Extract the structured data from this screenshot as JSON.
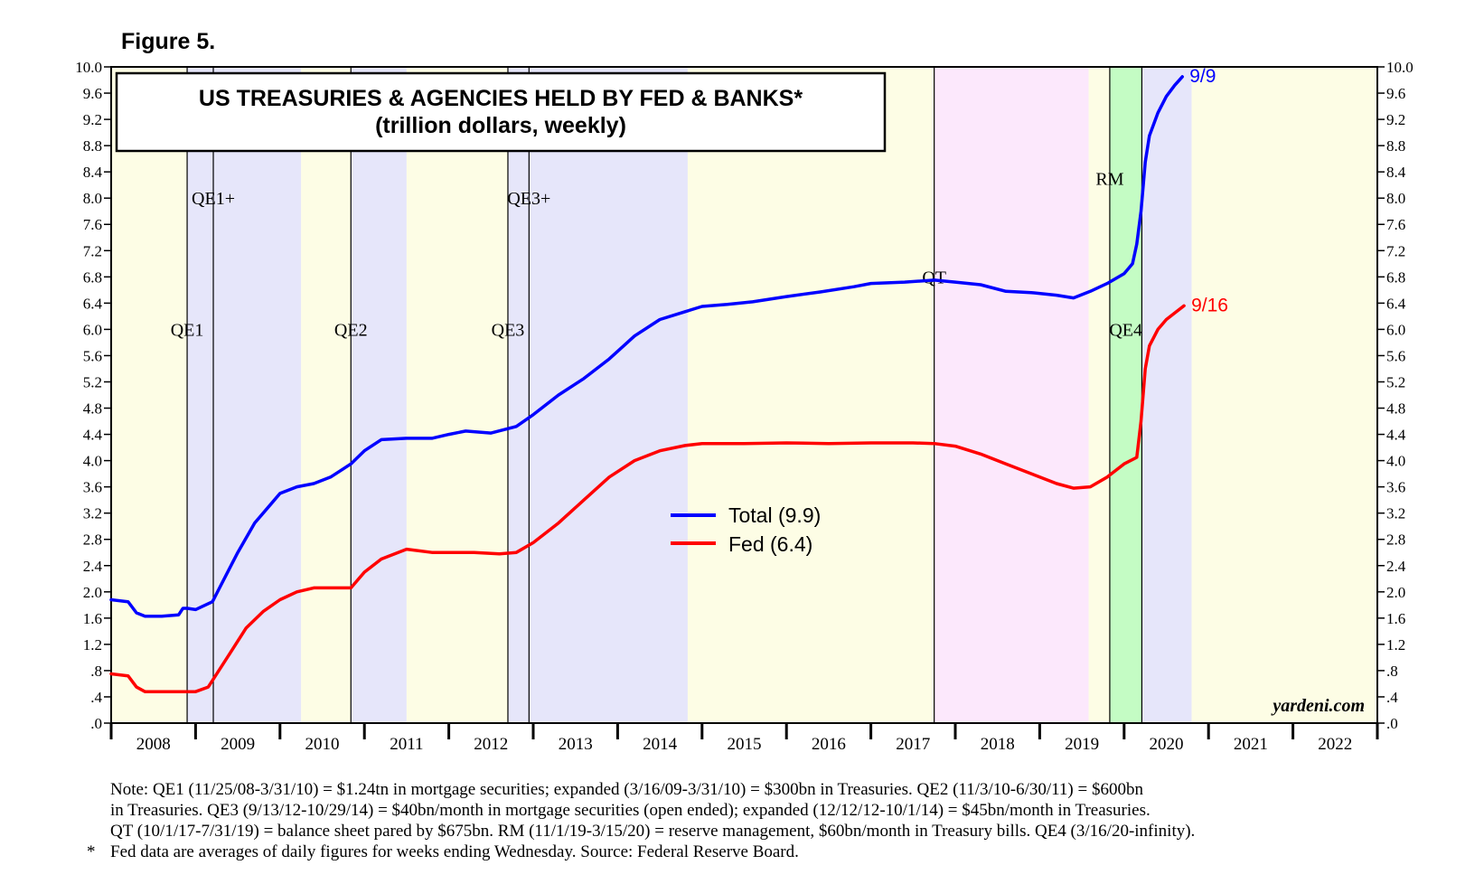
{
  "figure_label": "Figure 5.",
  "chart_data": {
    "type": "line",
    "title": "US TREASURIES & AGENCIES HELD BY FED & BANKS*",
    "subtitle": "(trillion dollars, weekly)",
    "xlim": [
      2008.0,
      2023.0
    ],
    "ylim": [
      0.0,
      10.0
    ],
    "y_ticks": [
      0.0,
      0.4,
      0.8,
      1.2,
      1.6,
      2.0,
      2.4,
      2.8,
      3.2,
      3.6,
      4.0,
      4.4,
      4.8,
      5.2,
      5.6,
      6.0,
      6.4,
      6.8,
      7.2,
      7.6,
      8.0,
      8.4,
      8.8,
      9.2,
      9.6,
      10.0
    ],
    "y_tick_labels": [
      ".0",
      ".4",
      ".8",
      "1.2",
      "1.6",
      "2.0",
      "2.4",
      "2.8",
      "3.2",
      "3.6",
      "4.0",
      "4.4",
      "4.8",
      "5.2",
      "5.6",
      "6.0",
      "6.4",
      "6.8",
      "7.2",
      "7.6",
      "8.0",
      "8.4",
      "8.8",
      "9.2",
      "9.6",
      "10.0"
    ],
    "x_tick_labels": [
      "2008",
      "2009",
      "2010",
      "2011",
      "2012",
      "2013",
      "2014",
      "2015",
      "2016",
      "2017",
      "2018",
      "2019",
      "2020",
      "2021",
      "2022"
    ],
    "shaded_periods": [
      {
        "start": 2008.0,
        "end": 2008.9,
        "color": "#fdfde5"
      },
      {
        "start": 2008.9,
        "end": 2010.25,
        "color": "#e6e6fa"
      },
      {
        "start": 2010.25,
        "end": 2010.84,
        "color": "#fdfde5"
      },
      {
        "start": 2010.84,
        "end": 2011.5,
        "color": "#e6e6fa"
      },
      {
        "start": 2011.5,
        "end": 2012.7,
        "color": "#fdfde5"
      },
      {
        "start": 2012.7,
        "end": 2014.83,
        "color": "#e6e6fa"
      },
      {
        "start": 2014.83,
        "end": 2017.75,
        "color": "#fdfde5"
      },
      {
        "start": 2017.75,
        "end": 2019.58,
        "color": "#fce8fc"
      },
      {
        "start": 2019.58,
        "end": 2019.83,
        "color": "#fdfde5"
      },
      {
        "start": 2019.83,
        "end": 2020.21,
        "color": "#c4fcc4"
      },
      {
        "start": 2020.21,
        "end": 2020.8,
        "color": "#e6e6fa"
      },
      {
        "start": 2020.8,
        "end": 2023.0,
        "color": "#fdfde5"
      }
    ],
    "event_lines": [
      2008.9,
      2009.21,
      2010.84,
      2012.7,
      2012.95,
      2017.75,
      2019.83,
      2020.21
    ],
    "period_labels": [
      {
        "text": "QE1",
        "x": 2008.9,
        "y": 6.0
      },
      {
        "text": "QE1+",
        "x": 2009.21,
        "y": 8.0
      },
      {
        "text": "QE2",
        "x": 2010.84,
        "y": 6.0
      },
      {
        "text": "QE3",
        "x": 2012.7,
        "y": 6.0
      },
      {
        "text": "QE3+",
        "x": 2012.95,
        "y": 8.0
      },
      {
        "text": "QT",
        "x": 2017.75,
        "y": 6.8
      },
      {
        "text": "RM",
        "x": 2019.83,
        "y": 8.3
      },
      {
        "text": "QE4",
        "x": 2020.02,
        "y": 6.0
      }
    ],
    "series": [
      {
        "name": "Total (9.9)",
        "color": "#0000ff",
        "end_label": "9/9",
        "x": [
          2008.0,
          2008.2,
          2008.3,
          2008.4,
          2008.6,
          2008.8,
          2008.85,
          2008.9,
          2009.0,
          2009.2,
          2009.3,
          2009.5,
          2009.7,
          2009.9,
          2010.0,
          2010.2,
          2010.4,
          2010.6,
          2010.84,
          2011.0,
          2011.2,
          2011.5,
          2011.8,
          2012.0,
          2012.2,
          2012.5,
          2012.8,
          2013.0,
          2013.3,
          2013.6,
          2013.9,
          2014.2,
          2014.5,
          2014.8,
          2015.0,
          2015.3,
          2015.6,
          2016.0,
          2016.4,
          2016.8,
          2017.0,
          2017.4,
          2017.75,
          2018.0,
          2018.3,
          2018.6,
          2018.9,
          2019.2,
          2019.4,
          2019.6,
          2019.8,
          2020.0,
          2020.1,
          2020.15,
          2020.2,
          2020.25,
          2020.3,
          2020.4,
          2020.5,
          2020.6,
          2020.69
        ],
        "y": [
          1.88,
          1.85,
          1.68,
          1.63,
          1.63,
          1.65,
          1.75,
          1.75,
          1.73,
          1.85,
          2.1,
          2.6,
          3.05,
          3.35,
          3.5,
          3.6,
          3.65,
          3.75,
          3.95,
          4.15,
          4.32,
          4.34,
          4.34,
          4.4,
          4.45,
          4.42,
          4.52,
          4.7,
          5.0,
          5.25,
          5.55,
          5.9,
          6.15,
          6.27,
          6.35,
          6.38,
          6.42,
          6.5,
          6.57,
          6.65,
          6.7,
          6.72,
          6.75,
          6.72,
          6.68,
          6.58,
          6.56,
          6.52,
          6.48,
          6.58,
          6.7,
          6.85,
          7.0,
          7.3,
          7.8,
          8.55,
          8.95,
          9.3,
          9.55,
          9.72,
          9.85
        ]
      },
      {
        "name": "Fed (6.4)",
        "color": "#ff0000",
        "end_label": "9/16",
        "x": [
          2008.0,
          2008.2,
          2008.3,
          2008.4,
          2008.6,
          2008.8,
          2009.0,
          2009.15,
          2009.2,
          2009.4,
          2009.6,
          2009.8,
          2010.0,
          2010.2,
          2010.4,
          2010.7,
          2010.84,
          2011.0,
          2011.2,
          2011.5,
          2011.8,
          2012.0,
          2012.3,
          2012.6,
          2012.8,
          2013.0,
          2013.3,
          2013.6,
          2013.9,
          2014.2,
          2014.5,
          2014.8,
          2015.0,
          2015.5,
          2016.0,
          2016.5,
          2017.0,
          2017.5,
          2017.75,
          2018.0,
          2018.3,
          2018.6,
          2018.9,
          2019.2,
          2019.4,
          2019.6,
          2019.8,
          2020.0,
          2020.15,
          2020.2,
          2020.25,
          2020.3,
          2020.4,
          2020.5,
          2020.6,
          2020.71
        ],
        "y": [
          0.75,
          0.72,
          0.55,
          0.48,
          0.48,
          0.48,
          0.48,
          0.55,
          0.65,
          1.05,
          1.45,
          1.7,
          1.88,
          2.0,
          2.06,
          2.06,
          2.06,
          2.3,
          2.5,
          2.65,
          2.6,
          2.6,
          2.6,
          2.58,
          2.6,
          2.75,
          3.05,
          3.4,
          3.75,
          4.0,
          4.15,
          4.23,
          4.26,
          4.26,
          4.27,
          4.26,
          4.27,
          4.27,
          4.26,
          4.22,
          4.1,
          3.95,
          3.8,
          3.65,
          3.58,
          3.6,
          3.75,
          3.95,
          4.05,
          4.6,
          5.4,
          5.75,
          6.0,
          6.15,
          6.25,
          6.36
        ]
      }
    ],
    "source_mark": "yardeni.com"
  },
  "notes": {
    "line1": "Note: QE1 (11/25/08-3/31/10) = $1.24tn in mortgage securities; expanded (3/16/09-3/31/10) = $300bn in Treasuries. QE2 (11/3/10-6/30/11) = $600bn",
    "line2": "in Treasuries. QE3 (9/13/12-10/29/14) = $40bn/month in mortgage securities (open ended); expanded (12/12/12-10/1/14) = $45bn/month in Treasuries.",
    "line3": "QT (10/1/17-7/31/19) = balance sheet pared by $675bn. RM (11/1/19-3/15/20) = reserve management, $60bn/month in Treasury bills. QE4 (3/16/20-infinity).",
    "footnote_mark": "*",
    "footnote": "Fed data are averages of daily figures for weeks ending Wednesday. Source: Federal Reserve Board."
  }
}
